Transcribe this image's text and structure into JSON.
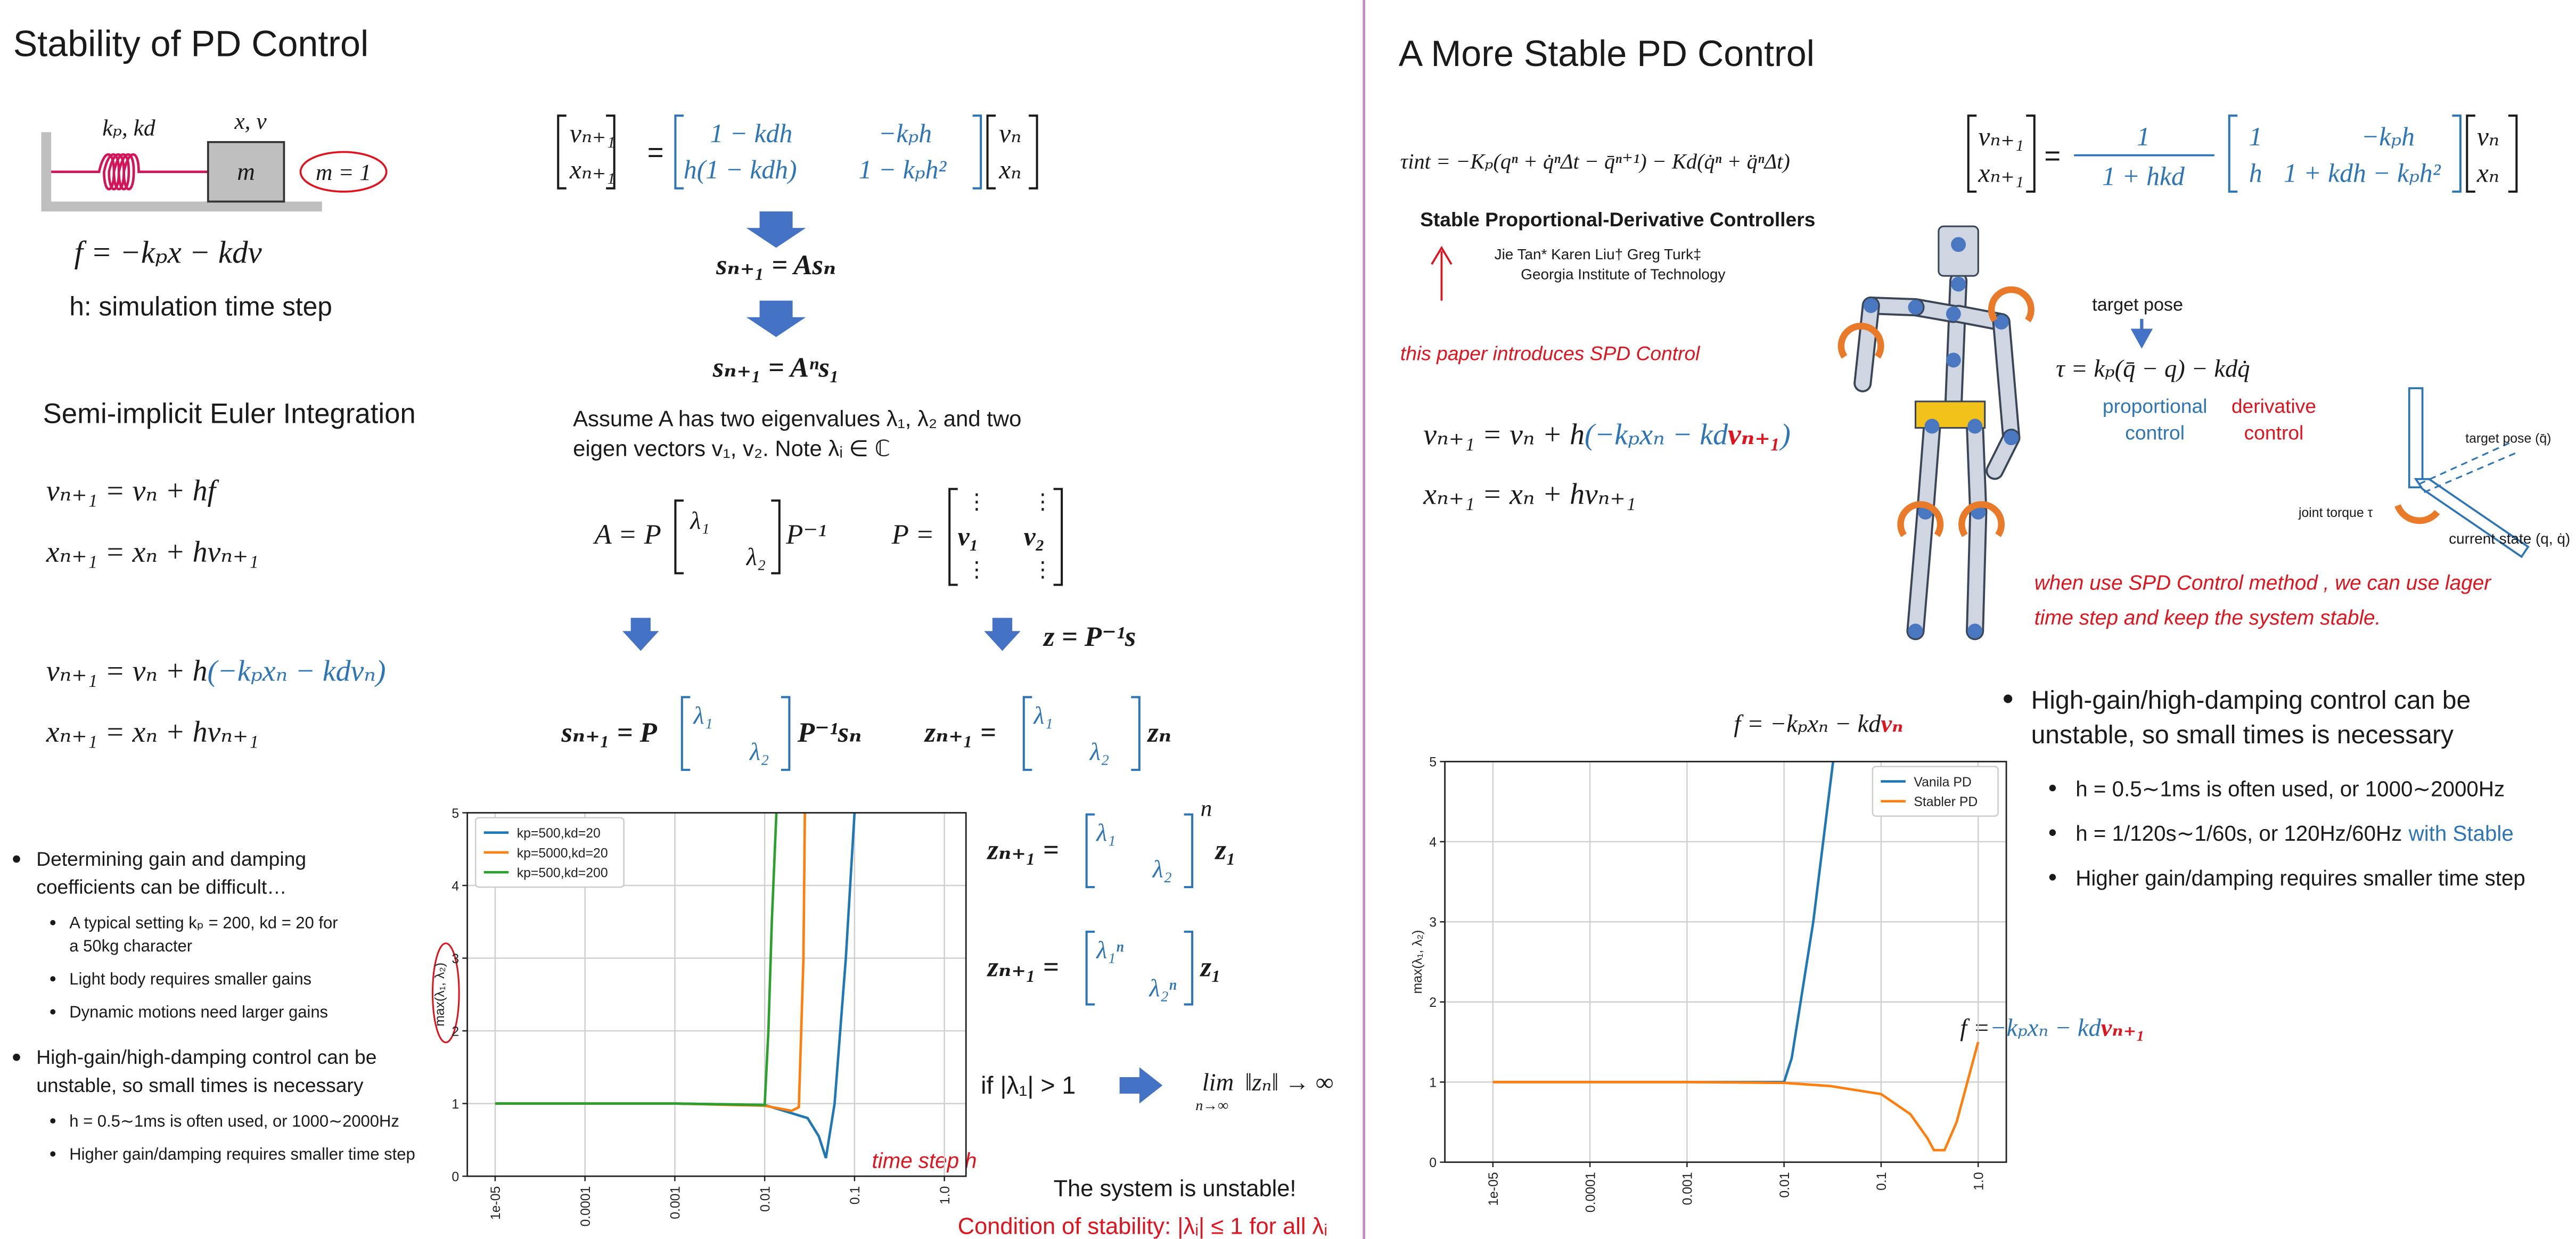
{
  "left": {
    "title": "Stability of PD Control",
    "diagram": {
      "gains": "kₚ, kd",
      "state": "x, v",
      "mass": "m",
      "mass_value": "m = 1"
    },
    "force": "f = −kₚx − kdv",
    "timestep": "h: simulation time step",
    "method": "Semi-implicit Euler Integration",
    "euler": [
      "vₙ₊₁ = vₙ + hf",
      "xₙ₊₁ = xₙ + hvₙ₊₁"
    ],
    "pd_euler": {
      "v_head": "vₙ₊₁ = vₙ + h",
      "v_force": "(−kₚxₙ − kdvₙ)",
      "x": "xₙ₊₁ = xₙ + hvₙ₊₁"
    },
    "bullets": [
      {
        "lines": [
          "Determining gain and damping",
          "coefficients can be difficult…"
        ],
        "sub": [
          {
            "lines": [
              "A typical setting kₚ = 200, kd = 20 for",
              "a 50kg character"
            ]
          },
          {
            "lines": [
              "Light body requires smaller gains"
            ]
          },
          {
            "lines": [
              "Dynamic motions need larger gains"
            ]
          }
        ]
      },
      {
        "lines": [
          "High-gain/high-damping control can be",
          "unstable, so small times is necessary"
        ],
        "sub": [
          {
            "lines": [
              "h = 0.5∼1ms is often used, or 1000∼2000Hz"
            ]
          },
          {
            "lines": [
              "Higher gain/damping requires smaller time step"
            ]
          }
        ]
      }
    ]
  },
  "middle": {
    "system": {
      "lhs": [
        "vₙ₊₁",
        "xₙ₊₁"
      ],
      "op": "=",
      "matrix": [
        [
          "1 − kdh",
          "−kₚh"
        ],
        [
          "h(1 − kdh)",
          "1 − kₚh²"
        ]
      ],
      "rhs": [
        "vₙ",
        "xₙ"
      ]
    },
    "step": "sₙ₊₁ = Asₙ",
    "power": "sₙ₊₁ = Aⁿs₁",
    "assume": [
      "Assume A has two eigenvalues λ₁, λ₂ and two",
      "eigen vectors v₁, v₂. Note λᵢ ∈ ℂ"
    ],
    "decomp": {
      "lhs": "A = P",
      "diag": [
        "λ₁",
        "λ₂"
      ],
      "rhs": "P⁻¹"
    },
    "eigvecs": {
      "lhs": "P =",
      "dots": "⋮",
      "cols": [
        "v₁",
        "v₂"
      ]
    },
    "change": "z = P⁻¹s",
    "s_step": {
      "lhs": "sₙ₊₁ = P",
      "diag": [
        "λ₁",
        "λ₂"
      ],
      "rhs": "P⁻¹sₙ"
    },
    "z_step": {
      "lhs": "zₙ₊₁ =",
      "diag": [
        "λ₁",
        "λ₂"
      ],
      "rhs": "zₙ"
    },
    "z_power": {
      "lhs": "zₙ₊₁ =",
      "diag": [
        "λ₁",
        "λ₂"
      ],
      "exp": "n",
      "rhs": "z₁"
    },
    "z_power2": {
      "lhs": "zₙ₊₁ =",
      "diag": [
        "λ₁ⁿ",
        "λ₂ⁿ"
      ],
      "rhs": "z₁"
    },
    "condition": "if |λ₁| > 1",
    "limit": {
      "op": "lim",
      "sub": "n→∞",
      "expr": "‖zₙ‖ → ∞"
    },
    "time_note": "time step h",
    "unstable": "The system is unstable!",
    "stability": "Condition of stability: |λᵢ| ≤ 1 for all λᵢ"
  },
  "right": {
    "title": "A More Stable PD Control",
    "spd_torque": "τint = −Kₚ(qⁿ + q̇ⁿΔt − q̄ⁿ⁺¹) − Kd(q̇ⁿ + q̈ⁿΔt)",
    "paper": {
      "title": "Stable Proportional-Derivative Controllers",
      "authors": "Jie Tan*      Karen Liu†      Greg Turk‡",
      "affiliation": "Georgia Institute of Technology"
    },
    "paper_note": "this paper introduces SPD Control",
    "spd_euler": {
      "v_head": "vₙ₊₁ = vₙ + h",
      "v_force": "(−kₚxₙ − kd",
      "v_next": "vₙ₊₁",
      "v_close": ")",
      "x": "xₙ₊₁ = xₙ + hvₙ₊₁"
    },
    "system": {
      "lhs": [
        "vₙ₊₁",
        "xₙ₊₁"
      ],
      "op": "=",
      "factor": {
        "num": "1",
        "den": "1 + hkd"
      },
      "matrix": [
        [
          "1",
          "−kₚh"
        ],
        [
          "h",
          "1 + kdh − kₚh²"
        ]
      ],
      "rhs": [
        "vₙ",
        "xₙ"
      ]
    },
    "target_pose": "target pose",
    "pd_law": "τ = kₚ(q̄ − q) − kdq̇",
    "proportional": [
      "proportional",
      "control"
    ],
    "derivative": [
      "derivative",
      "control"
    ],
    "joint": {
      "target": "target pose (q̄)",
      "torque": "joint torque τ",
      "current": "current state (q, q̇)"
    },
    "spd_note": [
      "when use SPD Control method , we can use lager",
      "time step and keep the system stable."
    ],
    "bullets": {
      "lines": [
        "High-gain/high-damping control can be",
        "unstable, so small times is necessary"
      ],
      "sub": [
        {
          "text": "h = 0.5∼1ms is often used, or 1000∼2000Hz"
        },
        {
          "text": "h = 1/120s∼1/60s, or 120Hz/60Hz",
          "highlight": "with Stable"
        },
        {
          "text": "Higher gain/damping requires smaller time step"
        }
      ]
    },
    "force_explicit": {
      "head": "f = −kₚxₙ − kd",
      "v": "vₙ"
    },
    "force_implicit": {
      "head": "f =",
      "force": "−kₚxₙ − kd",
      "v": "vₙ₊₁"
    }
  },
  "chart_data": [
    {
      "type": "line",
      "ylabel": "max(λ₁, λ₂)",
      "xscale": "log",
      "xlim": [
        4.9e-06,
        1.74
      ],
      "ylim": [
        0,
        5
      ],
      "xticks": [
        {
          "value": 1e-05,
          "label": "1e-05"
        },
        0.0001,
        0.001,
        0.01,
        0.1,
        {
          "value": 1,
          "label": "1.0"
        }
      ],
      "yticks": [
        0,
        1,
        2,
        3,
        4,
        5
      ],
      "grid": true,
      "legend": "upper left",
      "series": [
        {
          "name": "kp=500,kd=20",
          "color": "#1f77b4",
          "x": [
            1e-05,
            0.0001,
            0.001,
            0.01,
            0.03,
            0.04,
            0.048,
            0.06,
            0.08,
            0.1
          ],
          "values": [
            1,
            1,
            1,
            0.98,
            0.8,
            0.55,
            0.25,
            1,
            3,
            5
          ]
        },
        {
          "name": "kp=5000,kd=20",
          "color": "#ff7f0e",
          "x": [
            1e-05,
            0.0001,
            0.001,
            0.01,
            0.02,
            0.024,
            0.027,
            0.028
          ],
          "values": [
            1,
            1,
            1,
            0.97,
            0.9,
            0.95,
            3,
            5
          ]
        },
        {
          "name": "kp=500,kd=200",
          "color": "#2ca02c",
          "x": [
            1e-05,
            0.0001,
            0.001,
            0.01,
            0.011,
            0.012,
            0.0135
          ],
          "values": [
            1,
            1,
            1,
            0.98,
            2,
            3.5,
            5
          ]
        }
      ]
    },
    {
      "type": "line",
      "ylabel": "max(λ₁, λ₂)",
      "xscale": "log",
      "xlim": [
        3.2e-06,
        1.95
      ],
      "ylim": [
        0,
        5
      ],
      "xticks": [
        {
          "value": 1e-05,
          "label": "1e-05"
        },
        0.0001,
        0.001,
        0.01,
        0.1,
        {
          "value": 1,
          "label": "1.0"
        }
      ],
      "yticks": [
        0,
        1,
        2,
        3,
        4,
        5
      ],
      "grid": true,
      "legend": "upper right",
      "series": [
        {
          "name": "Vanila PD",
          "color": "#1f77b4",
          "x": [
            1e-05,
            0.0001,
            0.001,
            0.01,
            0.012,
            0.02,
            0.032
          ],
          "values": [
            1,
            1,
            1,
            1,
            1.3,
            3,
            5
          ]
        },
        {
          "name": "Stabler PD",
          "color": "#ff7f0e",
          "x": [
            1e-05,
            0.0001,
            0.001,
            0.01,
            0.03,
            0.1,
            0.2,
            0.3,
            0.35,
            0.45,
            0.6,
            1
          ],
          "values": [
            1,
            1,
            1,
            0.99,
            0.95,
            0.85,
            0.6,
            0.3,
            0.15,
            0.15,
            0.5,
            1.5
          ]
        }
      ]
    }
  ]
}
